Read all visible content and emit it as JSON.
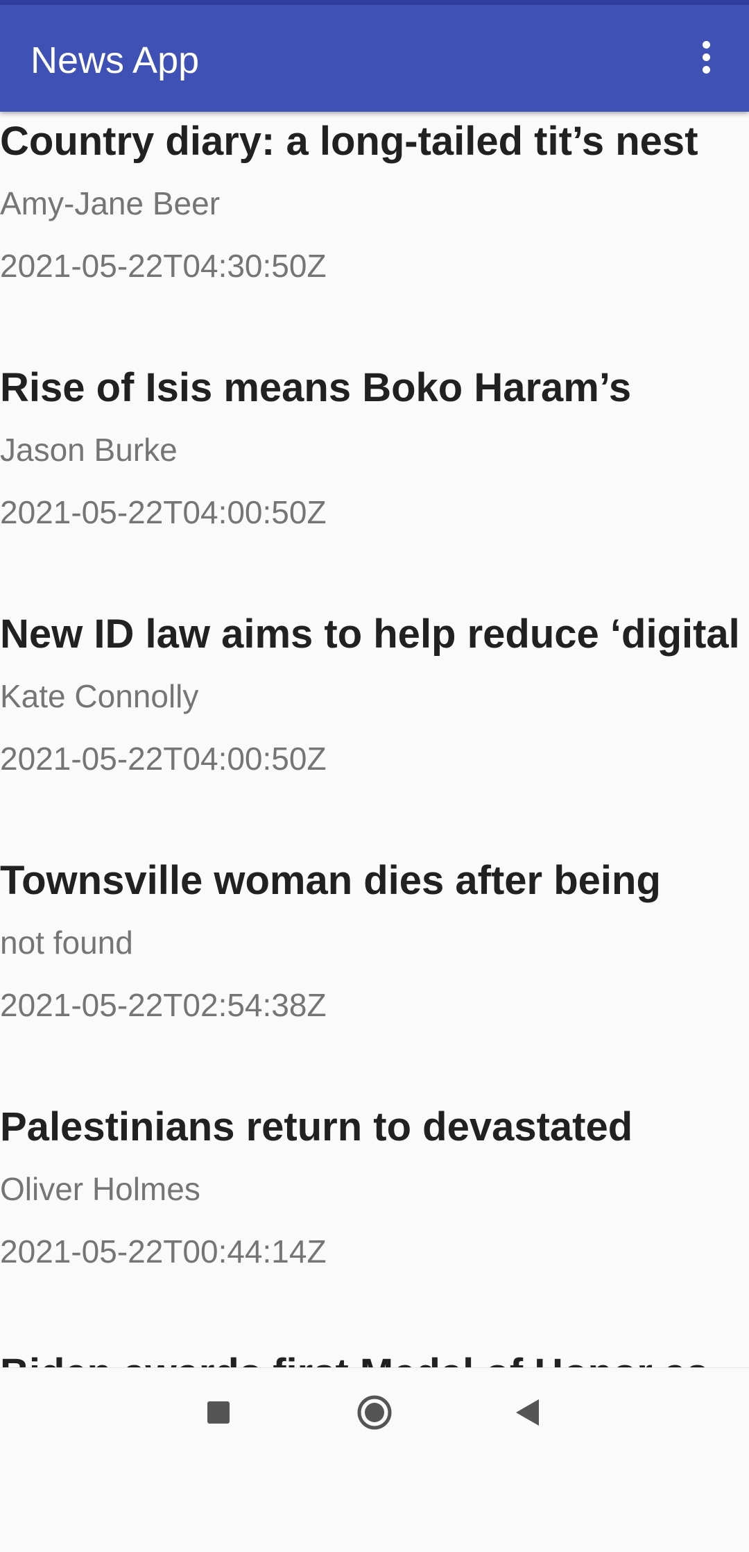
{
  "app_bar": {
    "title": "News App"
  },
  "articles": [
    {
      "title": "Country diary: a long-tailed tit’s nest",
      "author": "Amy-Jane Beer",
      "date": "2021-05-22T04:30:50Z"
    },
    {
      "title": "Rise of Isis means Boko Haram’s",
      "author": "Jason Burke",
      "date": "2021-05-22T04:00:50Z"
    },
    {
      "title": "New ID law aims to help reduce ‘digital",
      "author": "Kate Connolly",
      "date": "2021-05-22T04:00:50Z"
    },
    {
      "title": "Townsville woman dies after being",
      "author": "not found",
      "date": "2021-05-22T02:54:38Z"
    },
    {
      "title": "Palestinians return to devastated",
      "author": "Oliver Holmes",
      "date": "2021-05-22T00:44:14Z"
    },
    {
      "title": "Biden awards first Medal of Honor as"
    }
  ]
}
